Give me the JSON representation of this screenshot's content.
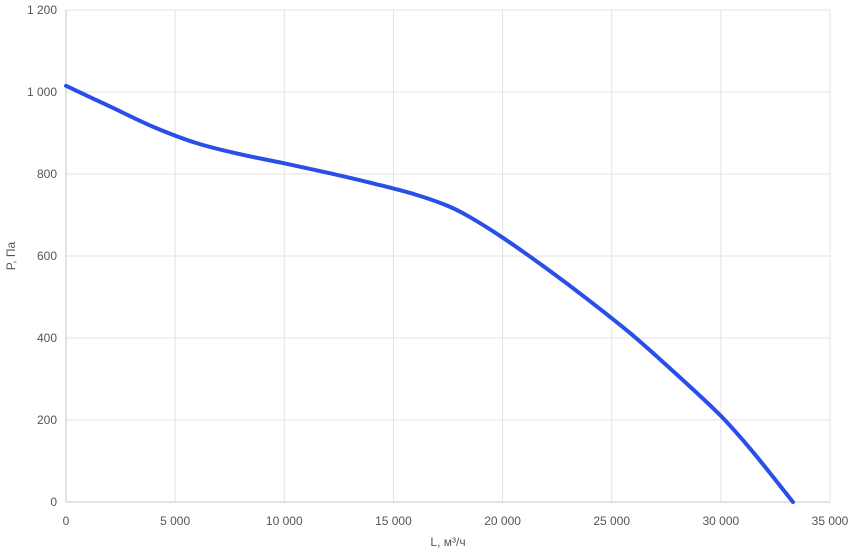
{
  "chart_data": {
    "type": "line",
    "xlabel": "L, м³/ч",
    "ylabel": "P, Па",
    "xlim": [
      0,
      35000
    ],
    "ylim": [
      0,
      1200
    ],
    "grid": true,
    "x_ticks": [
      0,
      5000,
      10000,
      15000,
      20000,
      25000,
      30000,
      35000
    ],
    "x_tick_labels": [
      "0",
      "5 000",
      "10 000",
      "15 000",
      "20 000",
      "25 000",
      "30 000",
      "35 000"
    ],
    "y_ticks": [
      0,
      200,
      400,
      600,
      800,
      1000,
      1200
    ],
    "y_tick_labels": [
      "0",
      "200",
      "400",
      "600",
      "800",
      "1 000",
      "1 200"
    ],
    "series": [
      {
        "color": "#2a4ee8",
        "x": [
          0,
          2000,
          4000,
          6000,
          8000,
          10000,
          12000,
          14000,
          16000,
          17500,
          18500,
          20000,
          22000,
          24000,
          26000,
          28000,
          30000,
          31500,
          33300
        ],
        "y": [
          1015,
          965,
          915,
          875,
          848,
          826,
          803,
          778,
          750,
          722,
          695,
          645,
          570,
          490,
          405,
          310,
          210,
          120,
          0
        ]
      }
    ]
  }
}
